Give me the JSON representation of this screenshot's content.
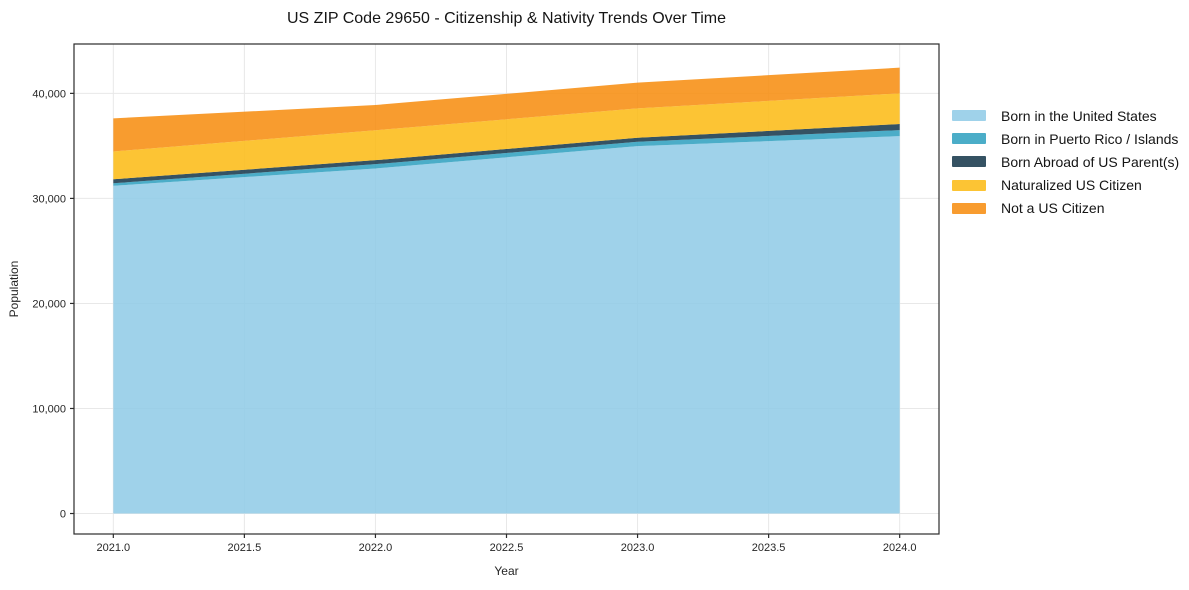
{
  "chart_data": {
    "type": "area",
    "stacked": true,
    "title": "US ZIP Code 29650 - Citizenship & Nativity Trends Over Time",
    "xlabel": "Year",
    "ylabel": "Population",
    "x": [
      2021,
      2022,
      2023,
      2024
    ],
    "series": [
      {
        "name": "Born in the United States",
        "color": "#8ecae6",
        "values": [
          31200,
          32850,
          34980,
          35930
        ]
      },
      {
        "name": "Born in Puerto Rico / Islands",
        "color": "#2b9fbe",
        "values": [
          240,
          410,
          410,
          570
        ]
      },
      {
        "name": "Born Abroad of US Parent(s)",
        "color": "#123448",
        "values": [
          380,
          380,
          380,
          580
        ]
      },
      {
        "name": "Naturalized US Citizen",
        "color": "#fcba10",
        "values": [
          2650,
          2850,
          2800,
          2920
        ]
      },
      {
        "name": "Not a US Citizen",
        "color": "#f78b0a",
        "values": [
          3150,
          2400,
          2450,
          2450
        ]
      }
    ],
    "xlim": [
      2020.85,
      2024.15
    ],
    "ylim": [
      -1950,
      44700
    ],
    "xticks": {
      "values": [
        2021.0,
        2021.5,
        2022.0,
        2022.5,
        2023.0,
        2023.5,
        2024.0
      ],
      "labels": [
        "2021.0",
        "2021.5",
        "2022.0",
        "2022.5",
        "2023.0",
        "2023.5",
        "2024.0"
      ]
    },
    "yticks": {
      "values": [
        0,
        10000,
        20000,
        30000,
        40000
      ],
      "labels": [
        "0",
        "10,000",
        "20,000",
        "30,000",
        "40,000"
      ]
    },
    "grid": true,
    "grid_color": "#e8e8e8",
    "spine_color": "#2b2b2b",
    "fill_opacity": 0.85,
    "legend_position": "right"
  }
}
